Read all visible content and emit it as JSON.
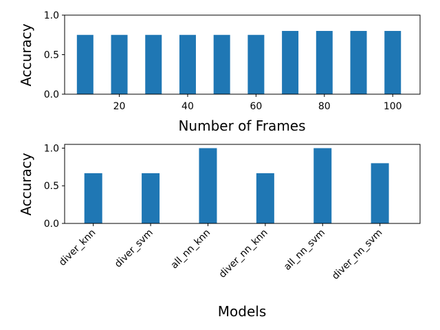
{
  "chart_data": [
    {
      "type": "bar",
      "xlabel": "Number of Frames",
      "ylabel": "Accuracy",
      "x": [
        10,
        20,
        30,
        40,
        50,
        60,
        70,
        80,
        90,
        100
      ],
      "values": [
        0.75,
        0.75,
        0.75,
        0.75,
        0.75,
        0.75,
        0.8,
        0.8,
        0.8,
        0.8
      ],
      "xticks": [
        "20",
        "40",
        "60",
        "80",
        "100"
      ],
      "yticks": [
        "0.0",
        "0.5",
        "1.0"
      ],
      "xlim": [
        4,
        108
      ],
      "ylim": [
        0,
        1.0
      ],
      "color": "#1f77b4",
      "grid": false
    },
    {
      "type": "bar",
      "xlabel": "Models",
      "ylabel": "Accuracy",
      "categories": [
        "diver_knn",
        "diver_svm",
        "all_nn_knn",
        "diver_nn_knn",
        "all_nn_svm",
        "diver_nn_svm"
      ],
      "values": [
        0.667,
        0.667,
        1.0,
        0.667,
        1.0,
        0.8
      ],
      "yticks": [
        "0.0",
        "0.5",
        "1.0"
      ],
      "ylim": [
        0,
        1.05
      ],
      "color": "#1f77b4",
      "grid": false
    }
  ]
}
